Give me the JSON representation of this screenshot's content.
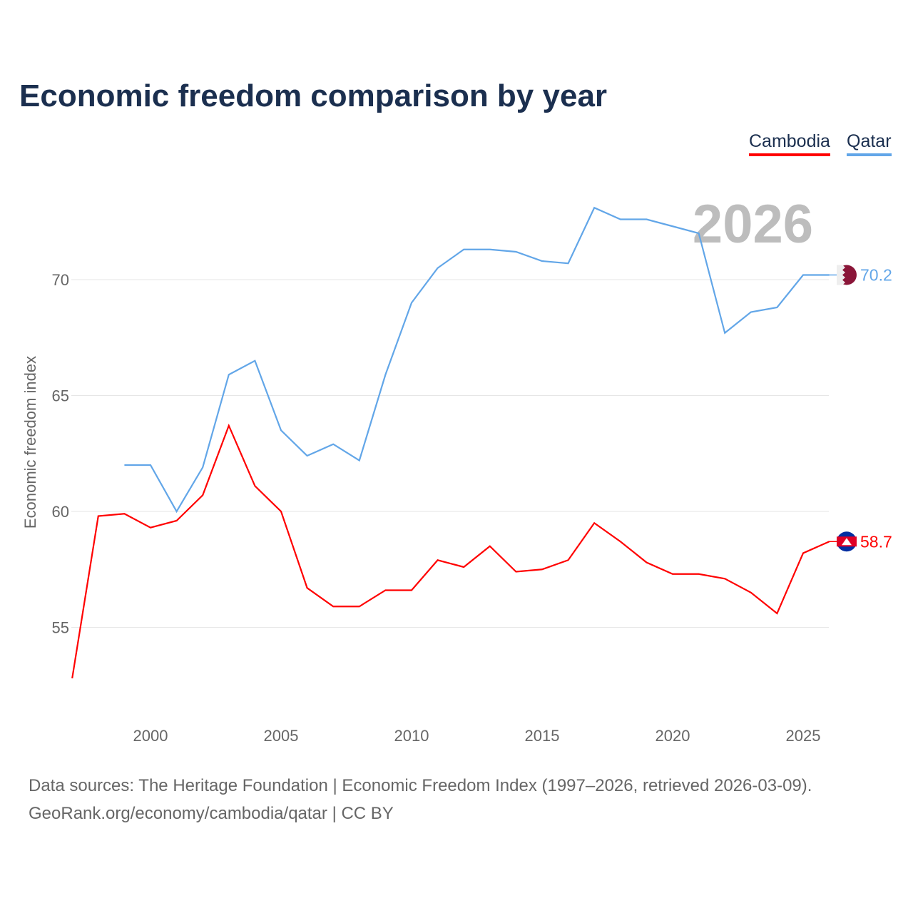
{
  "title": "Economic freedom comparison by year",
  "legend": [
    "Cambodia",
    "Qatar"
  ],
  "source_line1": "Data sources: The Heritage Foundation | Economic Freedom Index (1997–2026, retrieved 2026-03-09).",
  "source_line2": "GeoRank.org/economy/cambodia/qatar | CC BY",
  "chart_data": {
    "type": "line",
    "title": "Economic freedom comparison by year",
    "ylabel": "Economic freedom index",
    "xlabel": "",
    "year_label": "2026",
    "xlim": [
      1997,
      2026
    ],
    "ylim": [
      51.5,
      74
    ],
    "yticks": [
      55,
      60,
      65,
      70
    ],
    "xticks": [
      2000,
      2005,
      2010,
      2015,
      2020,
      2025
    ],
    "grid": true,
    "legend_position": "top-right",
    "series": [
      {
        "name": "Cambodia",
        "color": "#ff0000",
        "end_label": "58.7",
        "x": [
          1997,
          1998,
          1999,
          2000,
          2001,
          2002,
          2003,
          2004,
          2005,
          2006,
          2007,
          2008,
          2009,
          2010,
          2011,
          2012,
          2013,
          2014,
          2015,
          2016,
          2017,
          2018,
          2019,
          2020,
          2021,
          2022,
          2023,
          2024,
          2025,
          2026
        ],
        "values": [
          52.8,
          59.8,
          59.9,
          59.3,
          59.6,
          60.7,
          63.7,
          61.1,
          60.0,
          56.7,
          55.9,
          55.9,
          56.6,
          56.6,
          57.9,
          57.6,
          58.5,
          57.4,
          57.5,
          57.9,
          59.5,
          58.7,
          57.8,
          57.3,
          57.3,
          57.1,
          56.5,
          55.6,
          58.2,
          58.7
        ]
      },
      {
        "name": "Qatar",
        "color": "#62a6e8",
        "end_label": "70.2",
        "x": [
          1999,
          2000,
          2001,
          2002,
          2003,
          2004,
          2005,
          2006,
          2007,
          2008,
          2009,
          2010,
          2011,
          2012,
          2013,
          2014,
          2015,
          2016,
          2017,
          2018,
          2019,
          2020,
          2021,
          2022,
          2023,
          2024,
          2025,
          2026
        ],
        "values": [
          62.0,
          62.0,
          60.0,
          61.9,
          65.9,
          66.5,
          63.5,
          62.4,
          62.9,
          62.2,
          65.9,
          69.0,
          70.5,
          71.3,
          71.3,
          71.2,
          70.8,
          70.7,
          73.1,
          72.6,
          72.6,
          72.3,
          72.0,
          67.7,
          68.6,
          68.8,
          70.2,
          70.2
        ]
      }
    ]
  }
}
